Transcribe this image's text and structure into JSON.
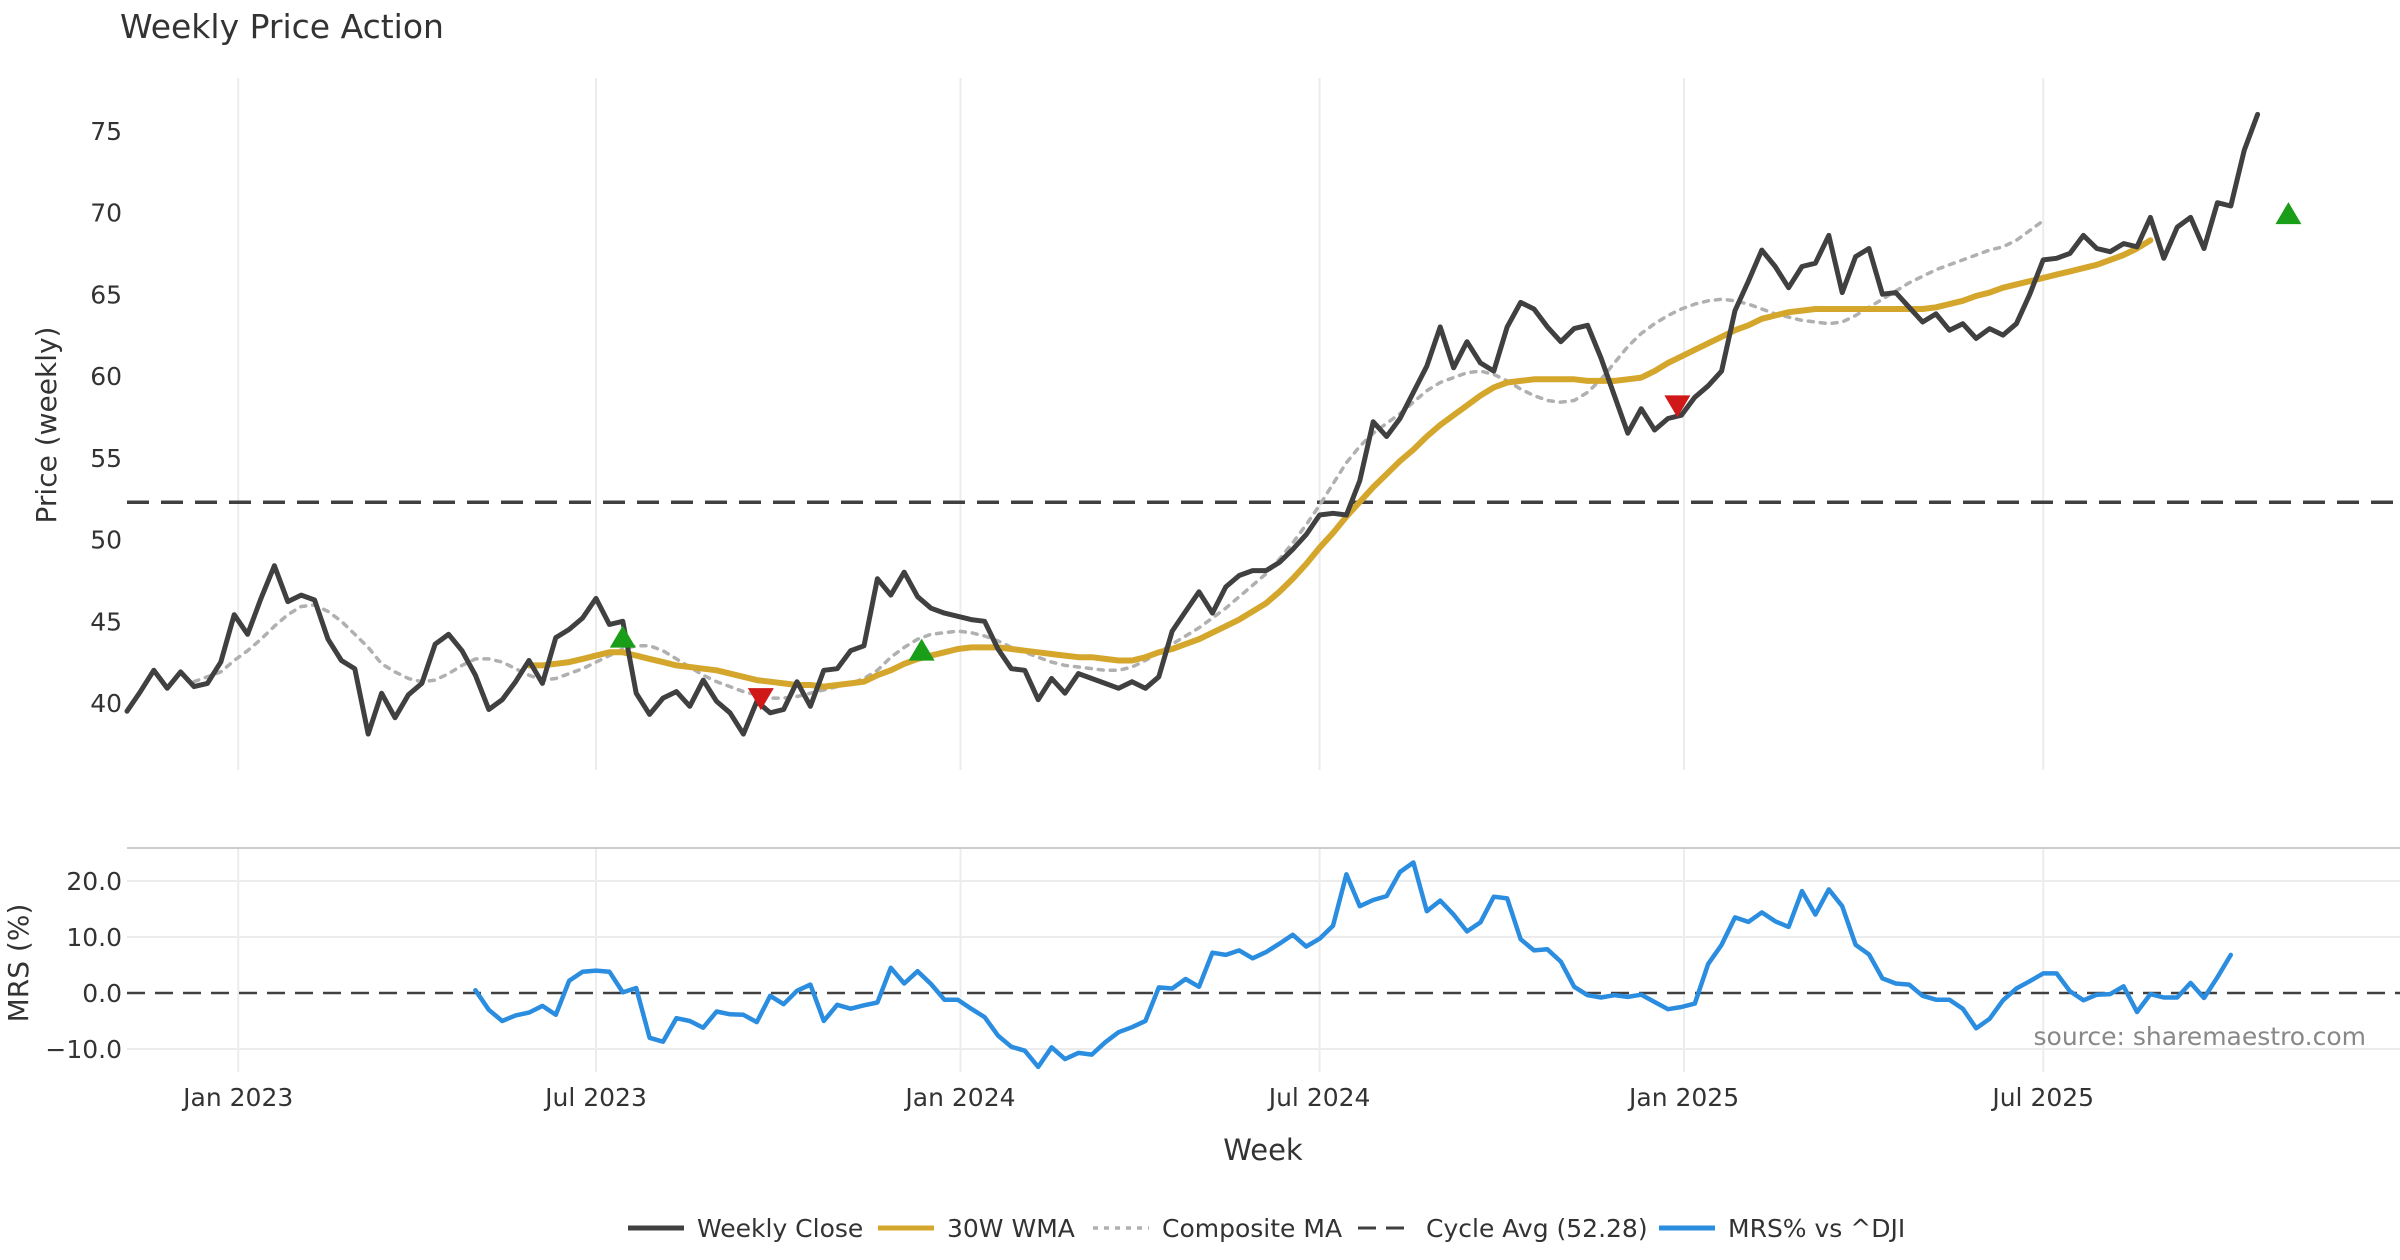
{
  "chart_data": {
    "type": "line",
    "title": "Weekly Price Action",
    "xlabel": "Week",
    "x_tick_labels": [
      "Jan 2023",
      "Jul 2023",
      "Jan 2024",
      "Jul 2024",
      "Jan 2025",
      "Jul 2025"
    ],
    "x_tick_weeks": [
      8.3,
      35.0,
      62.2,
      89.0,
      116.2,
      143.0
    ],
    "x_range_weeks": [
      0,
      170
    ],
    "week_count": 162,
    "price_panel": {
      "ylabel": "Price (weekly)",
      "ylim": [
        35.3,
        78
      ],
      "yticks": [
        "40",
        "45",
        "50",
        "55",
        "60",
        "65",
        "70",
        "75"
      ],
      "cycle_avg": 52.28,
      "series": [
        {
          "name": "Weekly Close",
          "color": "#404040",
          "start_week": 0,
          "values": [
            39.5,
            40.7,
            42,
            40.9,
            41.9,
            41,
            41.2,
            42.5,
            45.4,
            44.2,
            46.4,
            48.4,
            46.2,
            46.6,
            46.3,
            43.9,
            42.6,
            42.1,
            38.1,
            40.6,
            39.1,
            40.5,
            41.2,
            43.6,
            44.2,
            43.2,
            41.7,
            39.6,
            40.2,
            41.3,
            42.6,
            41.2,
            44,
            44.5,
            45.2,
            46.4,
            44.8,
            45,
            40.6,
            39.3,
            40.3,
            40.7,
            39.8,
            41.4,
            40.1,
            39.4,
            38.1,
            40.1,
            39.4,
            39.6,
            41.3,
            39.8,
            42,
            42.1,
            43.2,
            43.5,
            47.6,
            46.6,
            48,
            46.5,
            45.8,
            45.5,
            45.3,
            45.1,
            45,
            43.3,
            42.1,
            42,
            40.2,
            41.5,
            40.6,
            41.8,
            41.5,
            41.2,
            40.9,
            41.3,
            40.9,
            41.6,
            44.4,
            45.6,
            46.8,
            45.5,
            47.1,
            47.8,
            48.1,
            48.1,
            48.6,
            49.4,
            50.3,
            51.5,
            51.6,
            51.5,
            53.6,
            57.2,
            56.3,
            57.4,
            59,
            60.6,
            63,
            60.5,
            62.1,
            60.8,
            60.3,
            63,
            64.5,
            64.1,
            63,
            62.1,
            62.9,
            63.1,
            61.1,
            58.8,
            56.5,
            58,
            56.7,
            57.4,
            57.6,
            58.7,
            59.4,
            60.3,
            64,
            65.8,
            67.7,
            66.7,
            65.4,
            66.7,
            66.9,
            68.6,
            65.1,
            67.3,
            67.8,
            65,
            65.1,
            64.2,
            63.3,
            63.8,
            62.8,
            63.2,
            62.3,
            62.9,
            62.5,
            63.2,
            65,
            67.1,
            67.2,
            67.5,
            68.6,
            67.8,
            67.6,
            68.1,
            67.9,
            69.7,
            67.2,
            69.1,
            69.7,
            67.8,
            70.6,
            70.4,
            73.8,
            76
          ]
        },
        {
          "name": "30W WMA",
          "color": "#d4a72c",
          "start_week": 30,
          "values": [
            42.3,
            42.3,
            42.4,
            42.5,
            42.7,
            42.9,
            43.1,
            43.1,
            42.9,
            42.7,
            42.5,
            42.3,
            42.2,
            42.1,
            42,
            41.8,
            41.6,
            41.4,
            41.3,
            41.2,
            41.1,
            41.1,
            41,
            41.1,
            41.2,
            41.3,
            41.7,
            42,
            42.4,
            42.7,
            42.9,
            43.1,
            43.3,
            43.4,
            43.4,
            43.4,
            43.3,
            43.2,
            43.1,
            43,
            42.9,
            42.8,
            42.8,
            42.7,
            42.6,
            42.6,
            42.8,
            43.1,
            43.3,
            43.6,
            43.9,
            44.3,
            44.7,
            45.1,
            45.6,
            46.1,
            46.8,
            47.6,
            48.5,
            49.5,
            50.4,
            51.4,
            52.3,
            53.2,
            54,
            54.8,
            55.5,
            56.3,
            57,
            57.6,
            58.2,
            58.8,
            59.3,
            59.6,
            59.7,
            59.8,
            59.8,
            59.8,
            59.8,
            59.7,
            59.7,
            59.7,
            59.8,
            59.9,
            60.3,
            60.8,
            61.2,
            61.6,
            62,
            62.4,
            62.8,
            63.1,
            63.5,
            63.7,
            63.9,
            64,
            64.1,
            64.1,
            64.1,
            64.1,
            64.1,
            64.1,
            64.1,
            64.1,
            64.1,
            64.2,
            64.4,
            64.6,
            64.9,
            65.1,
            65.4,
            65.6,
            65.8,
            66,
            66.2,
            66.4,
            66.6,
            66.8,
            67.1,
            67.4,
            67.8,
            68.3
          ]
        },
        {
          "name": "Composite MA",
          "color": "#b0b0b0",
          "start_week": 5,
          "values": [
            41.3,
            41.6,
            41.9,
            42.6,
            43.2,
            43.9,
            44.7,
            45.4,
            45.9,
            46,
            45.6,
            45,
            44.2,
            43.4,
            42.4,
            41.9,
            41.5,
            41.3,
            41.4,
            41.8,
            42.3,
            42.7,
            42.7,
            42.5,
            42.1,
            41.7,
            41.4,
            41.5,
            41.8,
            42.1,
            42.5,
            42.9,
            43.3,
            43.5,
            43.5,
            43.2,
            42.7,
            42.2,
            41.7,
            41.3,
            41,
            40.7,
            40.5,
            40.3,
            40.3,
            40.4,
            40.6,
            40.8,
            41,
            41.2,
            41.5,
            42,
            42.8,
            43.4,
            43.9,
            44.2,
            44.3,
            44.4,
            44.3,
            44.1,
            43.8,
            43.4,
            43.1,
            42.8,
            42.5,
            42.3,
            42.2,
            42.1,
            42,
            42,
            42.2,
            42.6,
            43.1,
            43.6,
            44.1,
            44.6,
            45.2,
            45.8,
            46.5,
            47.2,
            47.9,
            48.8,
            49.8,
            50.9,
            52.1,
            53.4,
            54.7,
            55.7,
            56.5,
            57.1,
            57.7,
            58.4,
            59.1,
            59.6,
            59.9,
            60.2,
            60.3,
            60.1,
            59.7,
            59.2,
            58.8,
            58.5,
            58.4,
            58.5,
            59,
            59.8,
            60.8,
            61.8,
            62.6,
            63.2,
            63.7,
            64.1,
            64.4,
            64.6,
            64.7,
            64.6,
            64.4,
            64.1,
            63.8,
            63.6,
            63.4,
            63.3,
            63.2,
            63.3,
            63.7,
            64.2,
            64.7,
            65.2,
            65.7,
            66.1,
            66.5,
            66.8,
            67.1,
            67.4,
            67.7,
            67.9,
            68.3,
            68.9,
            69.5
          ]
        }
      ],
      "markers": [
        {
          "kind": "buy",
          "week": 37,
          "value": 44,
          "color": "#1a9e1a"
        },
        {
          "kind": "sell",
          "week": 47.3,
          "value": 40.3,
          "color": "#d01818"
        },
        {
          "kind": "buy",
          "week": 59.3,
          "value": 43.2,
          "color": "#1a9e1a"
        },
        {
          "kind": "sell",
          "week": 115.7,
          "value": 58.2,
          "color": "#d01818"
        },
        {
          "kind": "buy",
          "week": 161.3,
          "value": 69.9,
          "color": "#1a9e1a"
        }
      ]
    },
    "mrs_panel": {
      "ylabel": "MRS (%)",
      "ylim": [
        -14,
        26
      ],
      "yticks": [
        -10,
        0,
        10,
        20
      ],
      "ytick_labels": [
        "−10.0",
        "0.0",
        "10.0",
        "20.0"
      ],
      "zero_line": 0,
      "series": {
        "name": "MRS% vs ^DJI",
        "color": "#2b8de0",
        "start_week": 26,
        "values": [
          0.5,
          -3,
          -5,
          -4,
          -3.5,
          -2.3,
          -3.9,
          2.2,
          3.8,
          4,
          3.8,
          0.1,
          0.9,
          -8,
          -8.7,
          -4.5,
          -5,
          -6.2,
          -3.3,
          -3.8,
          -3.9,
          -5.2,
          -0.5,
          -2,
          0.4,
          1.5,
          -5,
          -2.1,
          -2.8,
          -2.2,
          -1.7,
          4.5,
          1.7,
          3.9,
          1.6,
          -1.2,
          -1.2,
          -2.8,
          -4.3,
          -7.6,
          -9.6,
          -10.3,
          -13.2,
          -9.7,
          -11.8,
          -10.7,
          -11,
          -8.8,
          -7,
          -6.1,
          -5,
          1,
          0.8,
          2.5,
          1.1,
          7.2,
          6.8,
          7.6,
          6.2,
          7.3,
          8.8,
          10.4,
          8.3,
          9.7,
          12,
          21.2,
          15.5,
          16.6,
          17.3,
          21.6,
          23.3,
          14.6,
          16.5,
          14,
          11,
          12.6,
          17.2,
          16.9,
          9.6,
          7.6,
          7.8,
          5.6,
          1.1,
          -0.4,
          -0.8,
          -0.4,
          -0.7,
          -0.3,
          -1.6,
          -2.9,
          -2.5,
          -1.9,
          5.2,
          8.6,
          13.5,
          12.7,
          14.4,
          12.8,
          11.8,
          18.2,
          14,
          18.5,
          15.5,
          8.6,
          6.9,
          2.6,
          1.7,
          1.5,
          -0.5,
          -1.2,
          -1.2,
          -2.8,
          -6.3,
          -4.6,
          -1.3,
          0.8,
          2.1,
          3.5,
          3.5,
          0.3,
          -1.3,
          -0.3,
          -0.2,
          1.2,
          -3.4,
          -0.2,
          -0.8,
          -0.8,
          1.8,
          -0.9,
          2.8,
          6.8
        ]
      }
    },
    "cycle_avg_label": "Cycle Avg (52.28)",
    "legend": {
      "position": "bottom-center",
      "entries": [
        {
          "label": "Weekly Close",
          "color": "#404040",
          "style": "solid"
        },
        {
          "label": "30W WMA",
          "color": "#d4a72c",
          "style": "solid"
        },
        {
          "label": "Composite MA",
          "color": "#b0b0b0",
          "style": "dotted"
        },
        {
          "label": "Cycle Avg (52.28)",
          "color": "#404040",
          "style": "dashed"
        },
        {
          "label": "MRS% vs ^DJI",
          "color": "#2b8de0",
          "style": "solid"
        }
      ]
    },
    "source_note": "source: sharemaestro.com",
    "grid": true
  }
}
